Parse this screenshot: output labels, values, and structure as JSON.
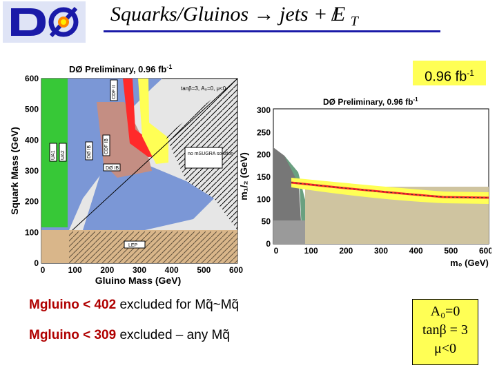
{
  "header": {
    "logo_text": "DØ",
    "title_prefix": "Squarks/Gluinos",
    "arrow": "→",
    "title_suffix": "jets +",
    "met_symbol": "E",
    "met_sub": "T"
  },
  "lumi_badge": {
    "text": "0.96 fb",
    "sup": "-1"
  },
  "left_plot": {
    "title": "DØ Preliminary, 0.96 fb",
    "title_sup": "-1",
    "xlabel": "Gluino Mass (GeV)",
    "ylabel": "Squark Mass (GeV)",
    "xticks": [
      "0",
      "100",
      "200",
      "300",
      "400",
      "500",
      "600"
    ],
    "yticks": [
      "0",
      "100",
      "200",
      "300",
      "400",
      "500",
      "600"
    ],
    "params": "tanβ=3, A₀=0, μ<0",
    "region_labels": [
      "UA1",
      "UA2",
      "DØ IB",
      "CDF IB",
      "CDF II",
      "DØ IB",
      "no mSUGRA solution",
      "LEP"
    ]
  },
  "right_plot": {
    "title": "DØ Preliminary, 0.96 fb",
    "title_sup": "-1",
    "xlabel": "m₀ (GeV)",
    "ylabel": "m₁/₂ (GeV)",
    "xticks": [
      "0",
      "100",
      "200",
      "300",
      "400",
      "500",
      "600"
    ],
    "yticks": [
      "0",
      "50",
      "100",
      "150",
      "200",
      "250",
      "300"
    ]
  },
  "bullets": [
    {
      "bold": "Mgluino < 402",
      "rest": " excluded for Mq̃~Mq̃"
    },
    {
      "bold": "Mgluino < 309",
      "rest": " excluded – any Mq̃"
    }
  ],
  "params_box": {
    "line1": "A₀=0",
    "line2": "tanβ = 3",
    "line3": "μ<0"
  },
  "colors": {
    "title_rule": "#1a1aa8",
    "highlight": "#ffff55",
    "bullet_accent": "#b00000"
  }
}
